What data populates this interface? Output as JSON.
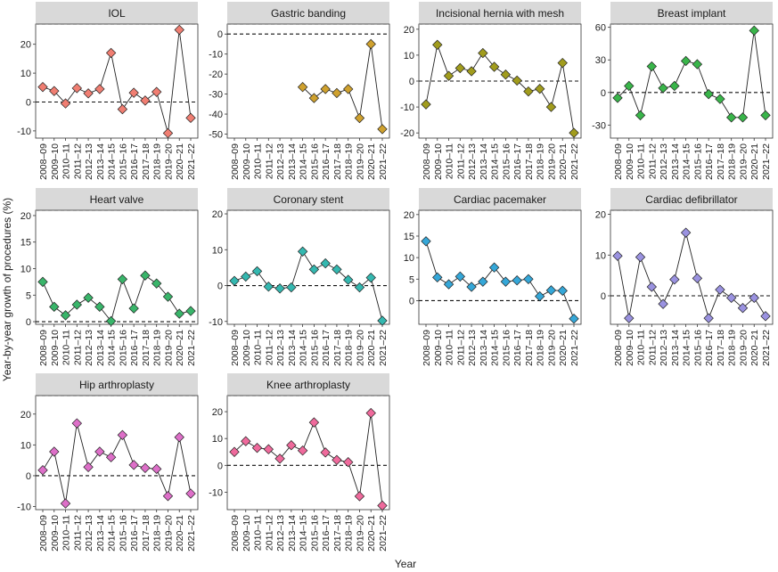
{
  "chart_data": {
    "type": "line",
    "ylabel": "Year-by-year growth of procedures (%)",
    "xlabel": "Year",
    "x": [
      "2008–09",
      "2009–10",
      "2010–11",
      "2011–12",
      "2012–13",
      "2013–14",
      "2014–15",
      "2015–16",
      "2016–17",
      "2017–18",
      "2018–19",
      "2019–20",
      "2020–21",
      "2021–22"
    ],
    "panels": [
      {
        "title": "IOL",
        "color": "#f07e72",
        "ylim": [
          -12.5,
          27
        ],
        "yticks": [
          -10,
          0,
          10,
          20
        ],
        "values": [
          5.2,
          3.8,
          -0.5,
          4.8,
          3.0,
          4.5,
          17.0,
          -2.5,
          3.2,
          0.5,
          3.5,
          -10.8,
          25.0,
          -5.5
        ]
      },
      {
        "title": "Gastric banding",
        "color": "#cfa12e",
        "ylim": [
          -52,
          5
        ],
        "yticks": [
          -50,
          -40,
          -30,
          -20,
          -10,
          0
        ],
        "values": [
          null,
          null,
          null,
          null,
          null,
          null,
          -26.5,
          -32.0,
          -27.5,
          -29.5,
          -27.5,
          -42.0,
          -5.0,
          -47.5
        ]
      },
      {
        "title": "Incisional hernia with mesh",
        "color": "#a19c1d",
        "ylim": [
          -22,
          22
        ],
        "yticks": [
          -20,
          -10,
          0,
          10,
          20
        ],
        "values": [
          -9.0,
          14.0,
          2.0,
          5.0,
          3.8,
          10.8,
          5.5,
          2.5,
          0.2,
          -4.0,
          -3.0,
          -10.0,
          7.0,
          -20.0
        ]
      },
      {
        "title": "Breast implant",
        "color": "#39b54a",
        "ylim": [
          -42,
          63
        ],
        "yticks": [
          -30,
          0,
          30,
          60
        ],
        "values": [
          -5.0,
          6.0,
          -21.0,
          24.0,
          4.0,
          6.0,
          29.0,
          26.0,
          -1.5,
          -6.0,
          -23.0,
          -23.0,
          57.0,
          -21.0
        ]
      },
      {
        "title": "Heart valve",
        "color": "#39b56a",
        "ylim": [
          -0.5,
          21
        ],
        "yticks": [
          0,
          5,
          10,
          15,
          20
        ],
        "values": [
          7.5,
          2.8,
          1.2,
          3.2,
          4.5,
          2.8,
          0.1,
          8.0,
          2.5,
          8.7,
          7.2,
          4.7,
          1.5,
          2.0
        ]
      },
      {
        "title": "Coronary stent",
        "color": "#34b8b0",
        "ylim": [
          -10.8,
          21
        ],
        "yticks": [
          -10,
          0,
          10,
          20
        ],
        "values": [
          1.3,
          2.5,
          4.0,
          -0.3,
          -0.8,
          -0.5,
          9.5,
          4.5,
          6.2,
          4.5,
          1.6,
          -0.5,
          2.2,
          -9.8
        ]
      },
      {
        "title": "Cardiac pacemaker",
        "color": "#35a7d8",
        "ylim": [
          -5.5,
          21
        ],
        "yticks": [
          0,
          5,
          10,
          15,
          20
        ],
        "values": [
          13.8,
          5.4,
          3.8,
          5.6,
          3.2,
          4.4,
          7.7,
          4.4,
          4.7,
          5.0,
          1.0,
          2.4,
          2.3,
          -4.2
        ]
      },
      {
        "title": "Cardiac defibrillator",
        "color": "#9a92e0",
        "ylim": [
          -7,
          21
        ],
        "yticks": [
          0,
          10,
          20
        ],
        "values": [
          9.8,
          -5.5,
          9.5,
          2.2,
          -2.0,
          4.0,
          15.5,
          4.3,
          -5.5,
          1.5,
          -0.5,
          -3.0,
          -0.5,
          -5.0
        ]
      },
      {
        "title": "Hip arthroplasty",
        "color": "#dd6fc8",
        "ylim": [
          -11,
          26
        ],
        "yticks": [
          -10,
          0,
          10,
          20
        ],
        "values": [
          1.8,
          7.8,
          -9.0,
          17.0,
          2.8,
          7.8,
          6.0,
          13.2,
          3.5,
          2.5,
          2.2,
          -6.6,
          12.5,
          -5.8
        ]
      },
      {
        "title": "Knee arthroplasty",
        "color": "#ef6a9c",
        "ylim": [
          -16.5,
          26
        ],
        "yticks": [
          -10,
          0,
          10,
          20
        ],
        "values": [
          5.0,
          9.0,
          6.5,
          6.0,
          2.5,
          7.5,
          5.5,
          16.0,
          4.8,
          2.0,
          1.2,
          -11.5,
          19.5,
          -15.0
        ]
      }
    ]
  }
}
